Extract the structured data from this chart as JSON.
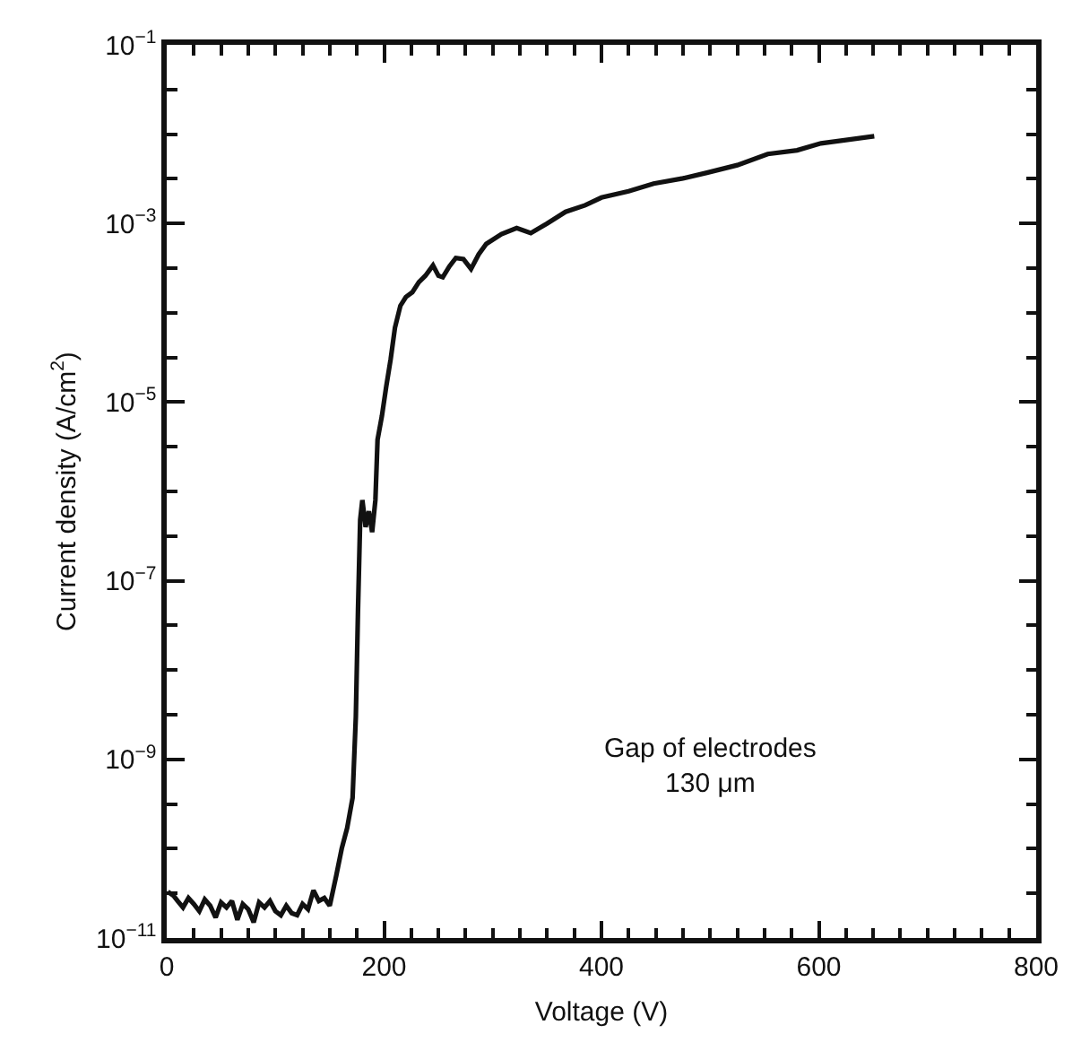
{
  "chart_data": {
    "type": "line",
    "xlabel": "Voltage (V)",
    "ylabel": "Current density (A/cm$^{2}$)",
    "log": "y",
    "marker": "none",
    "line_style": "solid",
    "xlim": [
      0,
      800
    ],
    "xticks": [
      0,
      200,
      400,
      600,
      800
    ],
    "ylim": [
      1e-11,
      0.1
    ],
    "yticks": [
      {
        "value": 0.1,
        "label": "10$^{−1}$"
      },
      {
        "value": 0.001,
        "label": "10$^{−3}$"
      },
      {
        "value": 1e-05,
        "label": "10$^{−5}$"
      },
      {
        "value": 1e-07,
        "label": "10$^{−7}$"
      },
      {
        "value": 1e-09,
        "label": "10$^{−9}$"
      },
      {
        "value": 1e-11,
        "label": "10$^{−11}$"
      }
    ],
    "annotations": [
      "Gap of electrodes\n130 μm"
    ],
    "series": [
      {
        "color": "#111111",
        "x": [
          1,
          6,
          10,
          15,
          20,
          25,
          30,
          35,
          40,
          45,
          50,
          55,
          60,
          65,
          70,
          75,
          80,
          85,
          90,
          95,
          100,
          105,
          110,
          115,
          120,
          125,
          130,
          135,
          140,
          145,
          150,
          156,
          161,
          166,
          171,
          174,
          176,
          178,
          180,
          183,
          186,
          189,
          192,
          194,
          198,
          202,
          206,
          210,
          215,
          220,
          226,
          232,
          238,
          245,
          250,
          254,
          260,
          266,
          273,
          280,
          287,
          294,
          308,
          322,
          335,
          350,
          367,
          385,
          400,
          425,
          448,
          475,
          497,
          525,
          553,
          580,
          602,
          625,
          651
        ],
        "values": [
          3.3e-11,
          3e-11,
          2.6e-11,
          2.2e-11,
          2.8e-11,
          2.4e-11,
          2e-11,
          2.7e-11,
          2.3e-11,
          1.7e-11,
          2.5e-11,
          2.2e-11,
          2.6e-11,
          1.6e-11,
          2.4e-11,
          2.1e-11,
          1.5e-11,
          2.5e-11,
          2.2e-11,
          2.6e-11,
          2e-11,
          1.8e-11,
          2.3e-11,
          1.9e-11,
          1.8e-11,
          2.4e-11,
          2.1e-11,
          3.4e-11,
          2.6e-11,
          2.8e-11,
          2.3e-11,
          5e-11,
          1e-10,
          1.7e-10,
          3.7e-10,
          3e-09,
          4.7e-08,
          4.8e-07,
          8e-07,
          4e-07,
          6e-07,
          3.5e-07,
          8e-07,
          3.8e-06,
          7e-06,
          1.5e-05,
          3e-05,
          6.8e-05,
          0.00012,
          0.00015,
          0.00017,
          0.00022,
          0.00026,
          0.00034,
          0.00026,
          0.00025,
          0.00033,
          0.00041,
          0.0004,
          0.00031,
          0.00045,
          0.00059,
          0.00076,
          0.00089,
          0.00078,
          0.001,
          0.00135,
          0.0016,
          0.00195,
          0.0023,
          0.0028,
          0.0032,
          0.0037,
          0.0045,
          0.006,
          0.0066,
          0.0079,
          0.0086,
          0.0095
        ]
      }
    ]
  }
}
